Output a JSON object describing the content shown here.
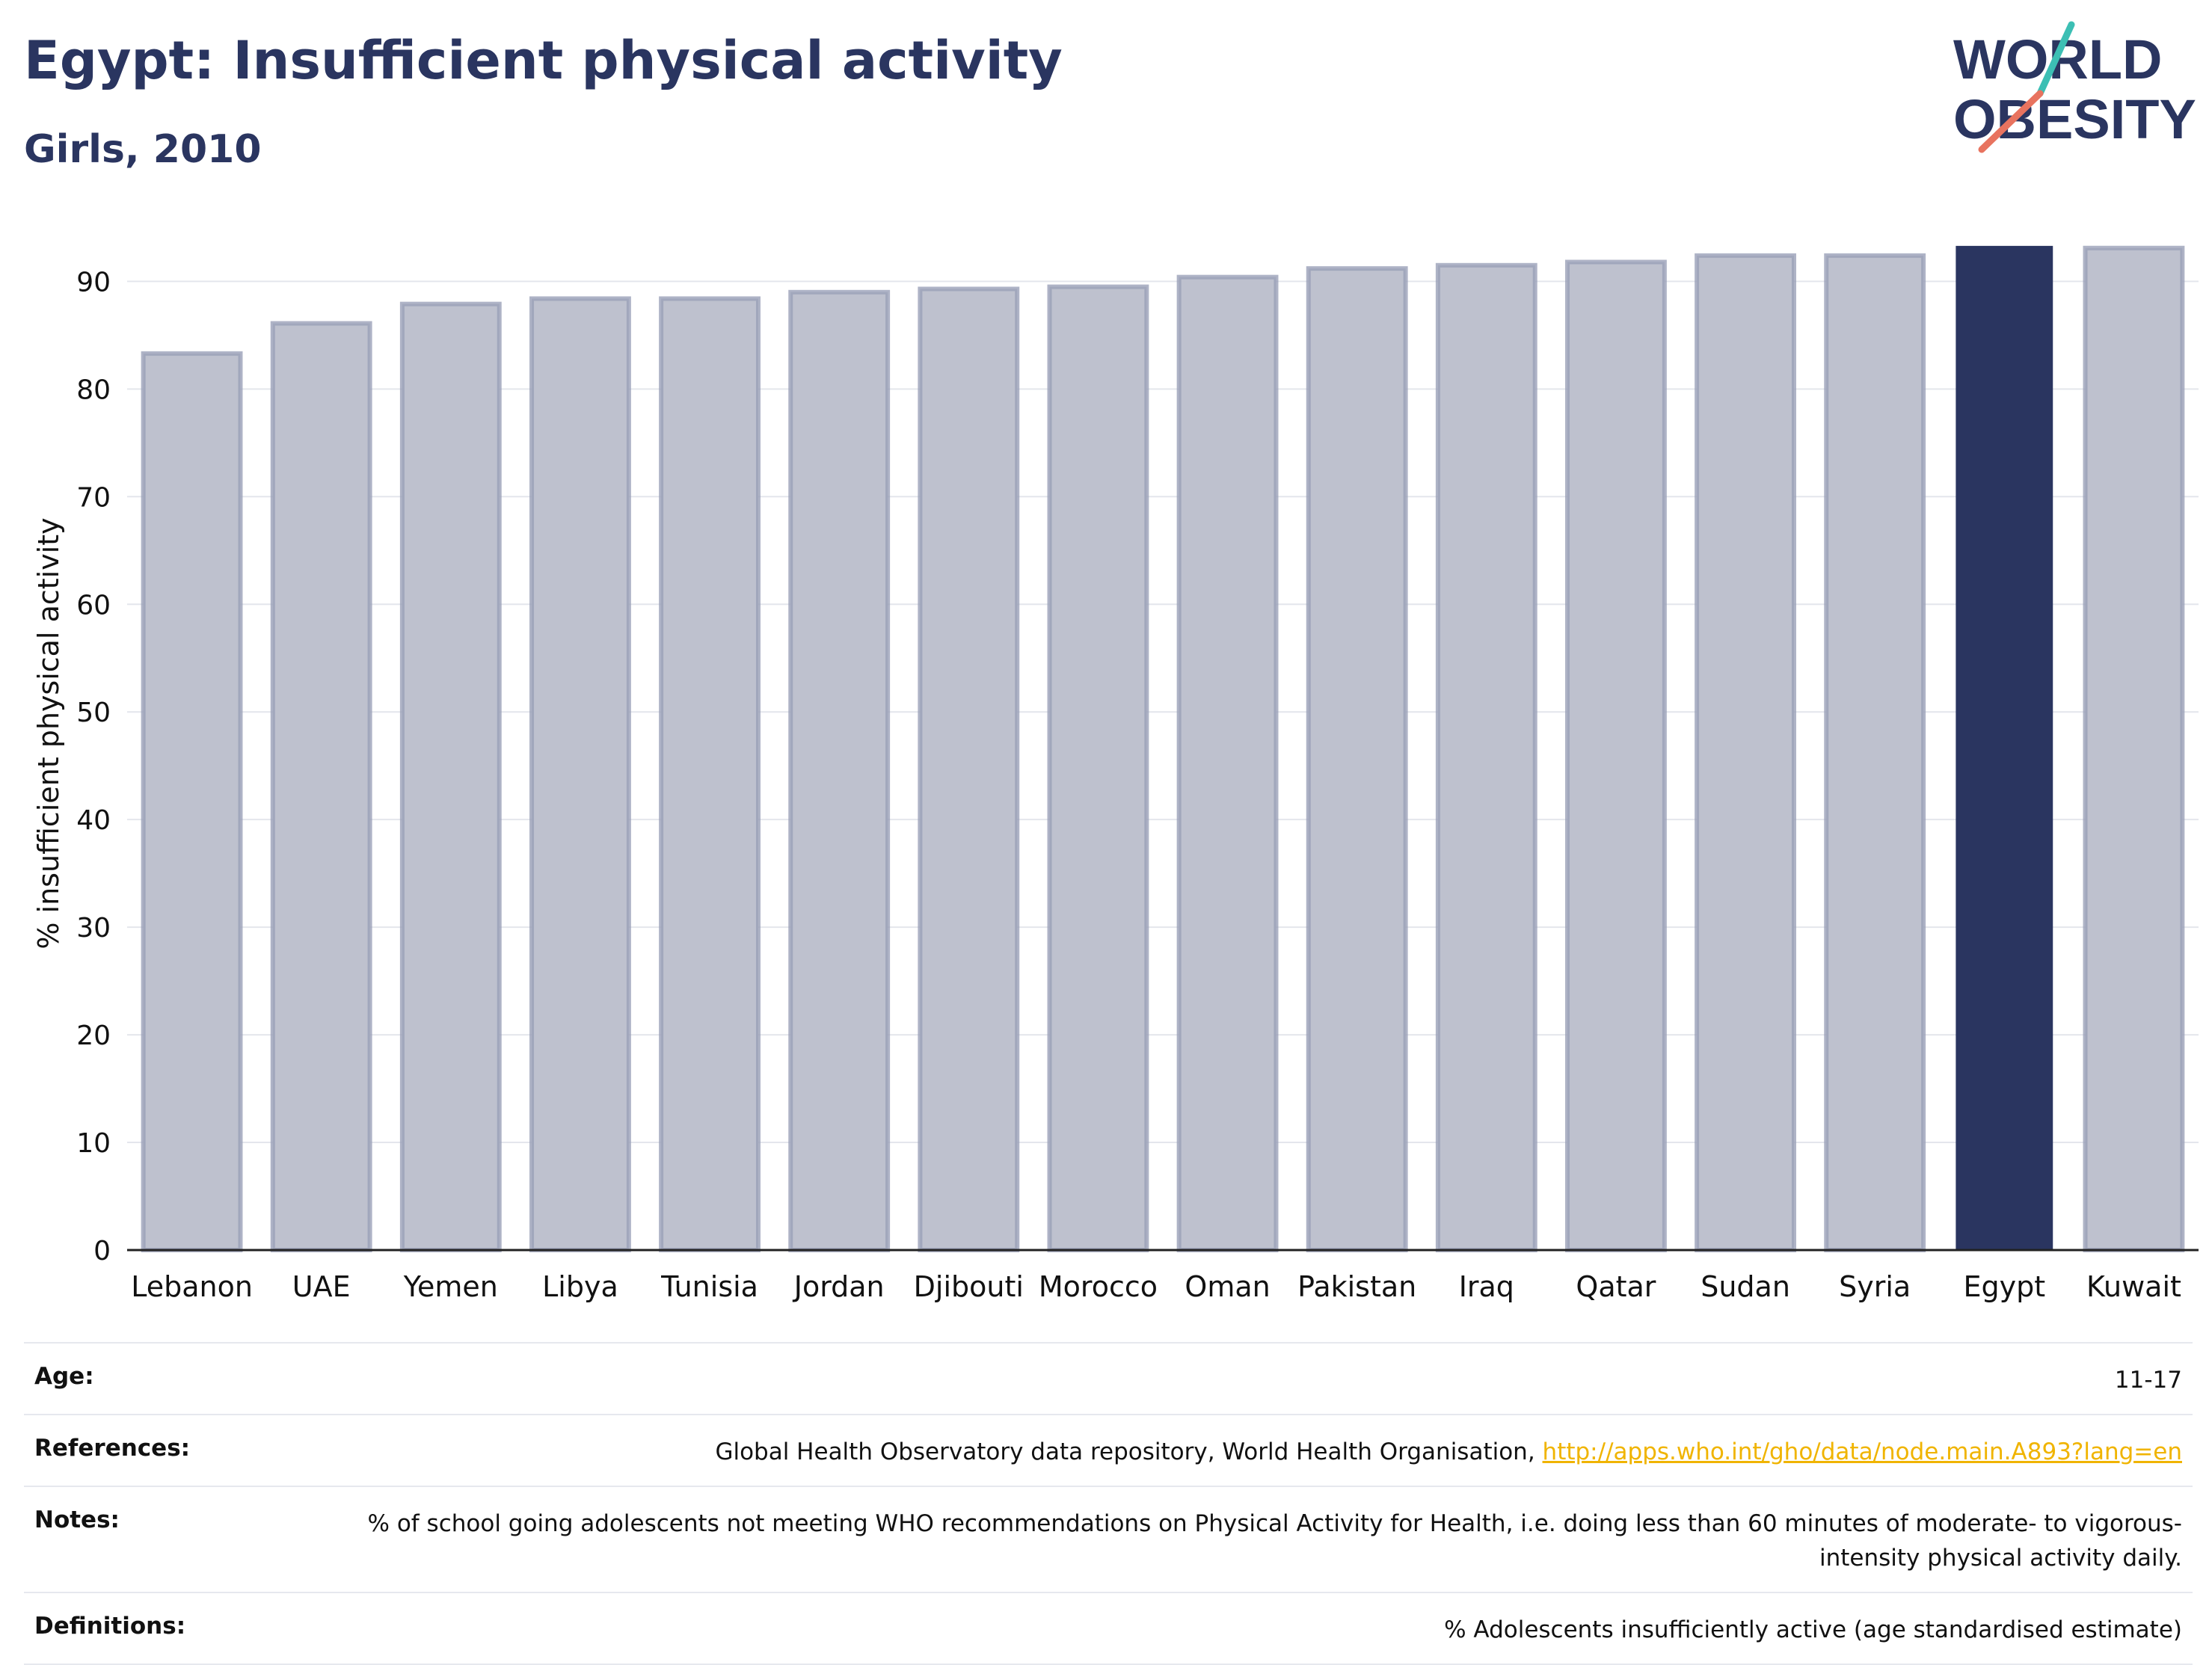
{
  "header": {
    "title": "Egypt: Insufficient physical activity",
    "subtitle": "Girls, 2010"
  },
  "logo": {
    "line1": "WORLD",
    "line2": "OBESITY",
    "icon": "world-obesity-logo"
  },
  "colors": {
    "highlight": "#2a3560",
    "bar": "#bec1ce",
    "bar_edge": "#9aa0b8",
    "link": "#f0b400"
  },
  "chart_data": {
    "type": "bar",
    "title": "Egypt: Insufficient physical activity",
    "subtitle": "Girls, 2010",
    "xlabel": "",
    "ylabel": "% insufficient physical activity",
    "ylim": [
      0,
      96
    ],
    "yticks": [
      0,
      10,
      20,
      30,
      40,
      50,
      60,
      70,
      80,
      90
    ],
    "grid": true,
    "highlight": "Egypt",
    "categories": [
      "Lebanon",
      "UAE",
      "Yemen",
      "Libya",
      "Tunisia",
      "Jordan",
      "Djibouti",
      "Morocco",
      "Oman",
      "Pakistan",
      "Iraq",
      "Qatar",
      "Sudan",
      "Syria",
      "Egypt",
      "Kuwait"
    ],
    "values": [
      83.3,
      86.1,
      87.9,
      88.4,
      88.4,
      89.0,
      89.3,
      89.5,
      90.4,
      91.2,
      91.5,
      91.8,
      92.4,
      92.4,
      93.3,
      93.1
    ]
  },
  "info": [
    {
      "label": "Age:",
      "value": "11-17"
    },
    {
      "label": "References:",
      "value": "Global Health Observatory data repository, World Health Organisation, ",
      "link": "http://apps.who.int/gho/data/node.main.A893?lang=en"
    },
    {
      "label": "Notes:",
      "value": "% of school going adolescents not meeting WHO recommendations on Physical Activity for Health, i.e. doing less than 60 minutes of moderate- to vigorous-intensity physical activity daily."
    },
    {
      "label": "Definitions:",
      "value": "% Adolescents insufficiently active (age standardised estimate)"
    }
  ]
}
